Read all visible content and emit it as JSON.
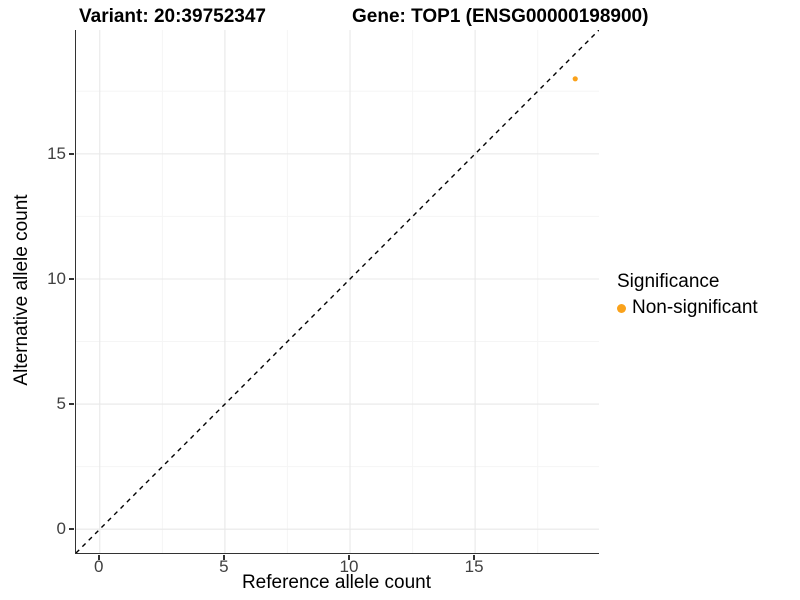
{
  "figure": {
    "title_left": "Variant: 20:39752347",
    "title_right": "Gene: TOP1 (ENSG00000198900)"
  },
  "chart_data": {
    "type": "scatter",
    "title": "Variant: 20:39752347    Gene: TOP1 (ENSG00000198900)",
    "xlabel": "Reference allele count",
    "ylabel": "Alternative allele count",
    "xlim": [
      -0.95,
      19.95
    ],
    "ylim": [
      -0.95,
      19.95
    ],
    "x_ticks": [
      0,
      5,
      10,
      15
    ],
    "y_ticks": [
      0,
      5,
      10,
      15
    ],
    "x_minor_ticks": [
      2.5,
      7.5,
      12.5,
      17.5
    ],
    "y_minor_ticks": [
      2.5,
      7.5,
      12.5,
      17.5
    ],
    "grid": "major+minor",
    "points": [
      {
        "x": 19,
        "y": 18,
        "series": "Non-significant"
      }
    ],
    "identity_line": {
      "equation": "y = x",
      "style": "dashed",
      "color": "#000000"
    },
    "legend": {
      "title": "Significance",
      "position": "right",
      "entries": [
        {
          "label": "Non-significant",
          "color": "#FAA21B"
        }
      ]
    },
    "colors": {
      "grid_major": "#E8E8E8",
      "grid_minor": "#F5F5F5",
      "axis_line": "#333333",
      "tick_label": "#404040",
      "point": "#FAA21B"
    }
  }
}
